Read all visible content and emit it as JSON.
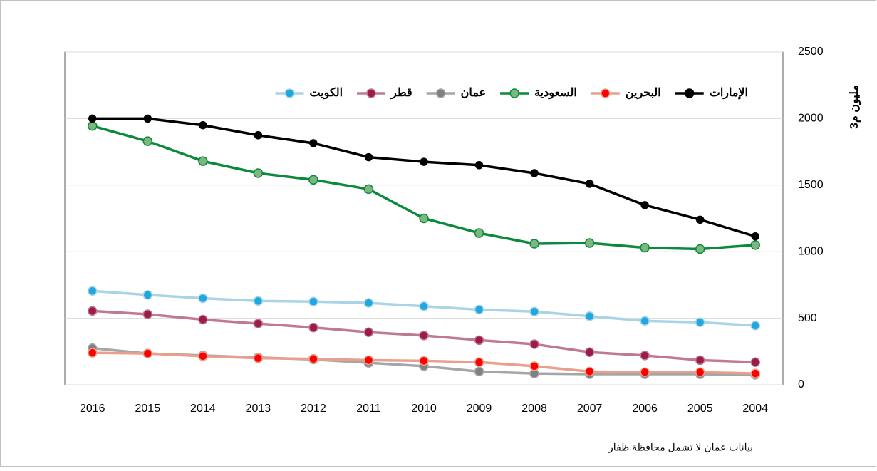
{
  "chart_data": {
    "type": "line",
    "y_label": "مليون م3",
    "note": "بيانات عمان لا تشمل محافظة ظفار",
    "categories": [
      "2016",
      "2015",
      "2014",
      "2013",
      "2012",
      "2011",
      "2010",
      "2009",
      "2008",
      "2007",
      "2006",
      "2005",
      "2004"
    ],
    "ylim": [
      0,
      2500
    ],
    "yticks": [
      0,
      500,
      1000,
      1500,
      2000,
      2500
    ],
    "grid": true,
    "series": [
      {
        "name": "الإمارات",
        "color": "#000000",
        "values": [
          2000,
          2000,
          1950,
          1875,
          1815,
          1710,
          1675,
          1650,
          1590,
          1510,
          1350,
          1240,
          1115
        ]
      },
      {
        "name": "البحرين",
        "color": "#e8a08c",
        "values": [
          240,
          235,
          215,
          200,
          195,
          185,
          180,
          170,
          140,
          100,
          95,
          95,
          85
        ]
      },
      {
        "name": "السعودية",
        "color": "#0a8a3a",
        "values": [
          1945,
          1830,
          1680,
          1590,
          1540,
          1470,
          1250,
          1140,
          1060,
          1065,
          1030,
          1020,
          1050
        ]
      },
      {
        "name": "عمان",
        "color": "#a6a6a6",
        "values": [
          275,
          235,
          220,
          205,
          190,
          165,
          140,
          100,
          85,
          80,
          80,
          80,
          75
        ]
      },
      {
        "name": "قطر",
        "color": "#c07a90",
        "values": [
          555,
          530,
          490,
          460,
          430,
          395,
          370,
          335,
          305,
          245,
          220,
          185,
          170
        ]
      },
      {
        "name": "الكويت",
        "color": "#a8d4e6",
        "values": [
          705,
          675,
          650,
          630,
          625,
          615,
          590,
          565,
          550,
          515,
          480,
          470,
          445
        ]
      }
    ]
  }
}
